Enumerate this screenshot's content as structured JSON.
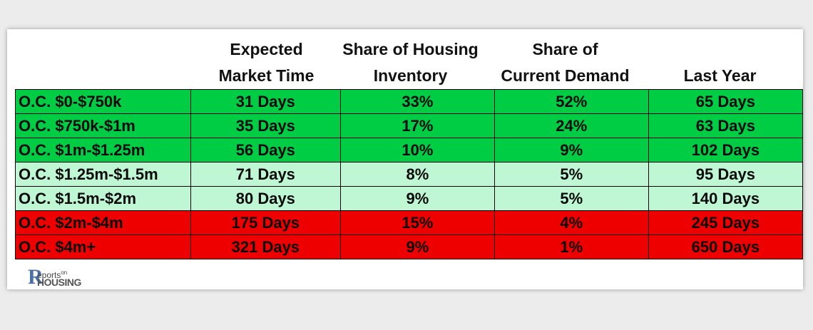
{
  "colors": {
    "dark_green": "#00cc44",
    "light_green": "#bff7d4",
    "red": "#ee0000"
  },
  "chart_data": {
    "type": "table",
    "columns": [
      "",
      "Expected\nMarket Time",
      "Share of Housing\nInventory",
      "Share of\nCurrent Demand",
      "Last Year"
    ],
    "rows": [
      {
        "label": "O.C. $0-$750k",
        "market_time": "31 Days",
        "inventory_share": "33%",
        "demand_share": "52%",
        "last_year": "65 Days",
        "tier": "dark_green"
      },
      {
        "label": "O.C. $750k-$1m",
        "market_time": "35 Days",
        "inventory_share": "17%",
        "demand_share": "24%",
        "last_year": "63 Days",
        "tier": "dark_green"
      },
      {
        "label": "O.C. $1m-$1.25m",
        "market_time": "56 Days",
        "inventory_share": "10%",
        "demand_share": "9%",
        "last_year": "102 Days",
        "tier": "dark_green"
      },
      {
        "label": "O.C. $1.25m-$1.5m",
        "market_time": "71 Days",
        "inventory_share": "8%",
        "demand_share": "5%",
        "last_year": "95 Days",
        "tier": "light_green"
      },
      {
        "label": "O.C. $1.5m-$2m",
        "market_time": "80 Days",
        "inventory_share": "9%",
        "demand_share": "5%",
        "last_year": "140 Days",
        "tier": "light_green"
      },
      {
        "label": "O.C. $2m-$4m",
        "market_time": "175 Days",
        "inventory_share": "15%",
        "demand_share": "4%",
        "last_year": "245 Days",
        "tier": "red"
      },
      {
        "label": "O.C. $4m+",
        "market_time": "321 Days",
        "inventory_share": "9%",
        "demand_share": "1%",
        "last_year": "650 Days",
        "tier": "red"
      }
    ]
  },
  "logo": {
    "initial": "R",
    "line1": "eports",
    "line1_small": "on",
    "line2": "HOUSING"
  }
}
